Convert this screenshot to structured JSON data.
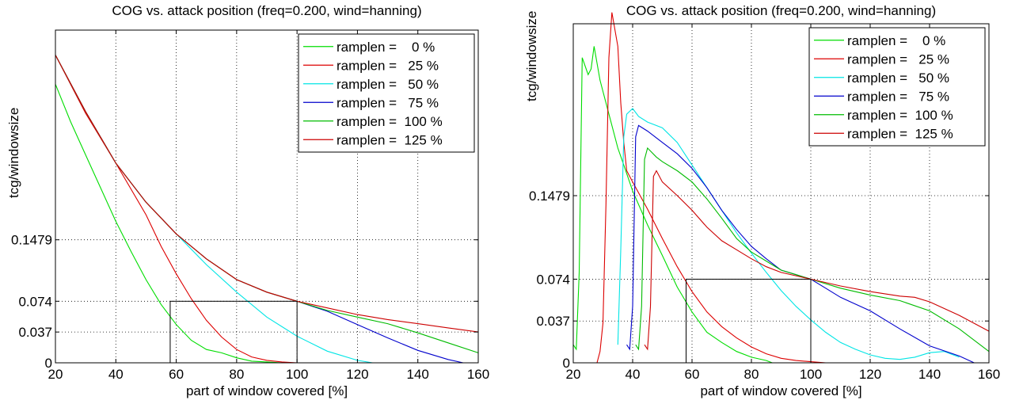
{
  "chart_data": [
    {
      "type": "line",
      "title": "COG vs. attack position (freq=0.200, wind=hanning)",
      "xlabel": "part of window covered [%]",
      "ylabel": "tcg/windowsize",
      "xlim": [
        20,
        160
      ],
      "ylim": [
        0,
        0.4
      ],
      "xticks": [
        20,
        40,
        60,
        80,
        100,
        120,
        140,
        160
      ],
      "yticks": [
        0,
        0.037,
        0.074,
        0.1479
      ],
      "ytick_labels": [
        "0",
        "0.037",
        "0.074",
        "0.1479"
      ],
      "grid": true,
      "legend_position": "top-right",
      "reference_box": {
        "x": [
          58,
          100
        ],
        "y": [
          0,
          0.074
        ]
      },
      "series": [
        {
          "name": "ramplen =    0 %",
          "color": "#00dd00",
          "x": [
            20,
            25,
            30,
            35,
            40,
            45,
            50,
            55,
            60,
            65,
            70,
            75,
            80,
            85,
            90,
            95,
            100
          ],
          "y": [
            0.335,
            0.29,
            0.25,
            0.21,
            0.17,
            0.134,
            0.1,
            0.07,
            0.046,
            0.027,
            0.016,
            0.012,
            0.006,
            0.002,
            0.001,
            0,
            0
          ]
        },
        {
          "name": "ramplen =   25 %",
          "color": "#dd0000",
          "x": [
            20,
            30,
            40,
            50,
            55,
            60,
            65,
            70,
            75,
            80,
            85,
            90,
            95,
            100,
            105
          ],
          "y": [
            0.37,
            0.3,
            0.24,
            0.178,
            0.14,
            0.107,
            0.077,
            0.051,
            0.031,
            0.016,
            0.007,
            0.003,
            0.001,
            0,
            0
          ]
        },
        {
          "name": "ramplen =   50 %",
          "color": "#00e5e5",
          "x": [
            20,
            30,
            40,
            50,
            60,
            70,
            80,
            90,
            100,
            110,
            120,
            125
          ],
          "y": [
            0.37,
            0.302,
            0.24,
            0.193,
            0.155,
            0.118,
            0.085,
            0.055,
            0.032,
            0.014,
            0.003,
            0
          ]
        },
        {
          "name": "ramplen =   75 %",
          "color": "#0000cc",
          "x": [
            20,
            30,
            40,
            50,
            60,
            70,
            80,
            90,
            100,
            110,
            120,
            130,
            140,
            150,
            155
          ],
          "y": [
            0.37,
            0.302,
            0.24,
            0.193,
            0.155,
            0.125,
            0.1,
            0.085,
            0.074,
            0.062,
            0.046,
            0.03,
            0.015,
            0.004,
            0
          ]
        },
        {
          "name": "ramplen =  100 %",
          "color": "#00bb00",
          "x": [
            20,
            30,
            40,
            50,
            60,
            70,
            80,
            90,
            100,
            110,
            120,
            130,
            140,
            150,
            160
          ],
          "y": [
            0.37,
            0.302,
            0.24,
            0.193,
            0.155,
            0.125,
            0.1,
            0.085,
            0.074,
            0.063,
            0.055,
            0.047,
            0.036,
            0.024,
            0.012
          ]
        },
        {
          "name": "ramplen =  125 %",
          "color": "#cc0000",
          "x": [
            20,
            30,
            40,
            50,
            60,
            70,
            80,
            90,
            100,
            110,
            120,
            130,
            140,
            150,
            160
          ],
          "y": [
            0.37,
            0.302,
            0.24,
            0.193,
            0.155,
            0.125,
            0.1,
            0.085,
            0.074,
            0.066,
            0.058,
            0.052,
            0.047,
            0.042,
            0.037
          ]
        }
      ]
    },
    {
      "type": "line",
      "title": "COG vs. attack position (freq=0.200, wind=hanning)",
      "xlabel": "part of window covered [%]",
      "ylabel": "tcg/windowsize",
      "xlim": [
        20,
        160
      ],
      "ylim": [
        0,
        0.3
      ],
      "xticks": [
        20,
        40,
        60,
        80,
        100,
        120,
        140,
        160
      ],
      "yticks": [
        0,
        0.037,
        0.074,
        0.1479
      ],
      "ytick_labels": [
        "0",
        "0.037",
        "0.074",
        "0.1479"
      ],
      "grid": true,
      "legend_position": "top-right",
      "reference_box": {
        "x": [
          58,
          100
        ],
        "y": [
          0,
          0.074
        ]
      },
      "series": [
        {
          "name": "ramplen =    0 %",
          "color": "#00dd00",
          "x": [
            20,
            21,
            22,
            23,
            25,
            26,
            27,
            29,
            31,
            33,
            35,
            37,
            40,
            45,
            50,
            55,
            60,
            65,
            70,
            75,
            80,
            85,
            87
          ],
          "y": [
            0.016,
            0.012,
            0.08,
            0.27,
            0.255,
            0.26,
            0.28,
            0.25,
            0.23,
            0.21,
            0.19,
            0.175,
            0.152,
            0.122,
            0.095,
            0.067,
            0.045,
            0.027,
            0.018,
            0.01,
            0.005,
            0.002,
            0
          ]
        },
        {
          "name": "ramplen =   25 %",
          "color": "#dd0000",
          "x": [
            28,
            29,
            30,
            31,
            32,
            33,
            35,
            36,
            37,
            38,
            40,
            45,
            50,
            55,
            60,
            65,
            70,
            75,
            80,
            85,
            90,
            95,
            100,
            105,
            110
          ],
          "y": [
            0,
            0.01,
            0.035,
            0.14,
            0.27,
            0.31,
            0.28,
            0.23,
            0.195,
            0.17,
            0.16,
            0.136,
            0.11,
            0.085,
            0.063,
            0.045,
            0.032,
            0.022,
            0.014,
            0.008,
            0.004,
            0.002,
            0.001,
            0,
            0
          ]
        },
        {
          "name": "ramplen =   50 %",
          "color": "#00e5e5",
          "x": [
            35,
            36,
            37,
            38,
            40,
            42,
            45,
            50,
            55,
            60,
            65,
            70,
            75,
            80,
            85,
            90,
            95,
            100,
            105,
            110,
            115,
            120,
            125,
            130,
            135,
            140,
            145,
            150
          ],
          "y": [
            0.016,
            0.1,
            0.2,
            0.22,
            0.225,
            0.218,
            0.213,
            0.208,
            0.195,
            0.175,
            0.155,
            0.135,
            0.115,
            0.097,
            0.08,
            0.064,
            0.05,
            0.038,
            0.027,
            0.018,
            0.012,
            0.007,
            0.004,
            0.003,
            0.005,
            0.009,
            0.01,
            0.005
          ]
        },
        {
          "name": "ramplen =   75 %",
          "color": "#0000cc",
          "x": [
            38,
            39,
            40,
            41,
            42,
            45,
            50,
            55,
            60,
            65,
            70,
            75,
            80,
            85,
            90,
            95,
            100,
            105,
            110,
            120,
            130,
            140,
            150,
            155
          ],
          "y": [
            0.016,
            0.012,
            0.05,
            0.2,
            0.21,
            0.205,
            0.195,
            0.185,
            0.172,
            0.155,
            0.135,
            0.118,
            0.103,
            0.092,
            0.082,
            0.078,
            0.074,
            0.066,
            0.058,
            0.046,
            0.03,
            0.015,
            0.006,
            0
          ]
        },
        {
          "name": "ramplen =  100 %",
          "color": "#00bb00",
          "x": [
            41,
            42,
            43,
            44,
            45,
            48,
            50,
            55,
            60,
            65,
            70,
            75,
            80,
            85,
            90,
            95,
            100,
            110,
            120,
            130,
            140,
            150,
            160
          ],
          "y": [
            0.016,
            0.012,
            0.05,
            0.18,
            0.19,
            0.182,
            0.178,
            0.17,
            0.16,
            0.145,
            0.128,
            0.11,
            0.098,
            0.09,
            0.082,
            0.078,
            0.074,
            0.066,
            0.06,
            0.055,
            0.046,
            0.03,
            0.01
          ]
        },
        {
          "name": "ramplen =  125 %",
          "color": "#cc0000",
          "x": [
            44,
            45,
            46,
            47,
            48,
            50,
            55,
            60,
            65,
            70,
            75,
            80,
            85,
            90,
            95,
            100,
            110,
            120,
            130,
            135,
            140,
            150,
            160
          ],
          "y": [
            0.016,
            0.012,
            0.05,
            0.165,
            0.17,
            0.16,
            0.148,
            0.135,
            0.12,
            0.108,
            0.1,
            0.092,
            0.085,
            0.08,
            0.077,
            0.074,
            0.068,
            0.063,
            0.059,
            0.058,
            0.054,
            0.042,
            0.028
          ]
        }
      ]
    }
  ]
}
